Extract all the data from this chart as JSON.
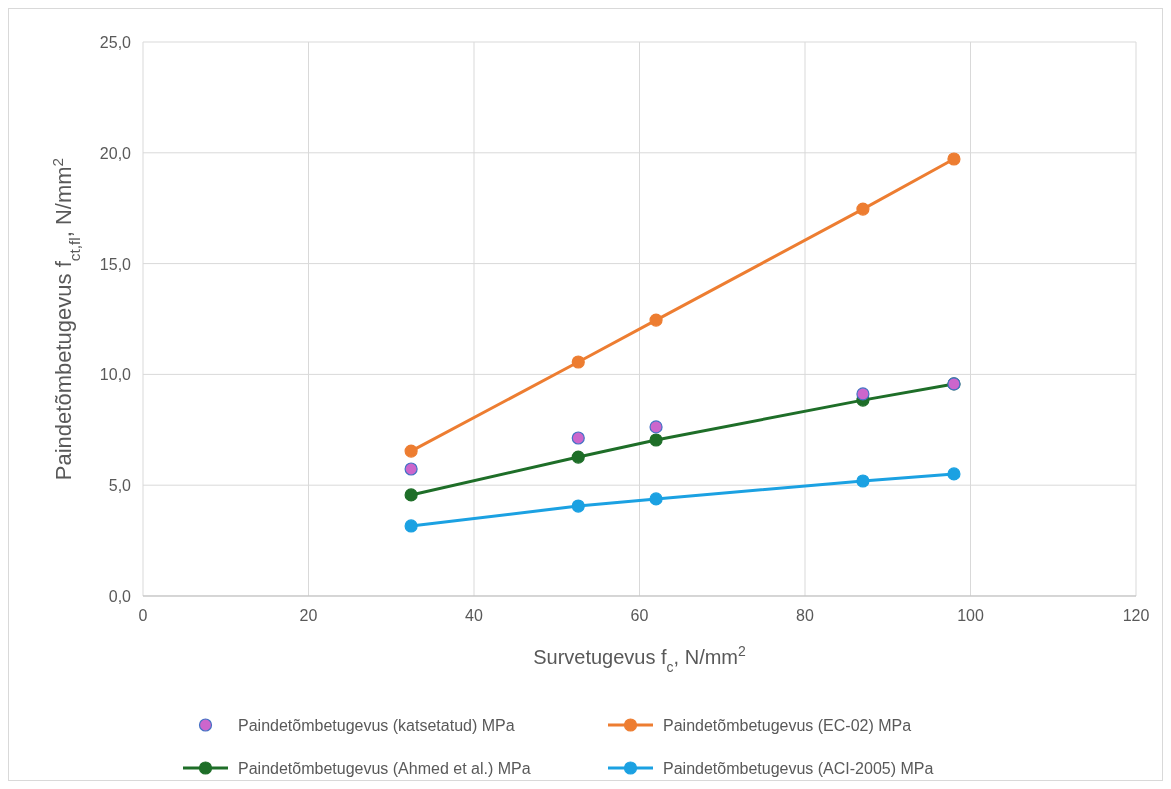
{
  "chart_data": {
    "type": "line",
    "xlabel": "Survetugevus f$_{c}$, N/mm$^{2}$",
    "ylabel": "Paindetõmbetugevus f$_{ct,fl}$, N/mm$^{2}$",
    "xlim": [
      0,
      120
    ],
    "xticks": [
      0,
      20,
      40,
      60,
      80,
      100,
      120
    ],
    "ylim": [
      0,
      25
    ],
    "yticks": [
      {
        "value": 0,
        "label": "0,0"
      },
      {
        "value": 5,
        "label": "5,0"
      },
      {
        "value": 10,
        "label": "10,0"
      },
      {
        "value": 15,
        "label": "15,0"
      },
      {
        "value": 20,
        "label": "20,0"
      },
      {
        "value": 25,
        "label": "25,0"
      }
    ],
    "grid": true,
    "legend": "bottom",
    "marker": "circle",
    "series": [
      {
        "name": "Paindetõmbetugevus (katsetatud) MPa",
        "type": "scatter",
        "color": "#cc66cc",
        "x": [
          32.4,
          52.6,
          62.0,
          87.0,
          98.0
        ],
        "values": [
          5.73,
          7.13,
          7.63,
          9.12,
          9.57
        ]
      },
      {
        "name": "Paindetõmbetugevus (EC-02) MPa",
        "color": "#ed7d31",
        "x": [
          32.4,
          52.6,
          62.0,
          87.0,
          98.0
        ],
        "values": [
          6.54,
          10.56,
          12.45,
          17.46,
          19.72
        ]
      },
      {
        "name": "Paindetõmbetugevus (Ahmed et al.) MPa",
        "color": "#1e6e28",
        "x": [
          32.4,
          52.6,
          62.0,
          87.0,
          98.0
        ],
        "values": [
          4.56,
          6.27,
          7.04,
          8.84,
          9.57
        ]
      },
      {
        "name": "Paindetõmbetugevus (ACI-2005) MPa",
        "color": "#1ba1e2",
        "x": [
          32.4,
          52.6,
          62.0,
          87.0,
          98.0
        ],
        "values": [
          3.16,
          4.06,
          4.38,
          5.19,
          5.51
        ]
      }
    ]
  }
}
